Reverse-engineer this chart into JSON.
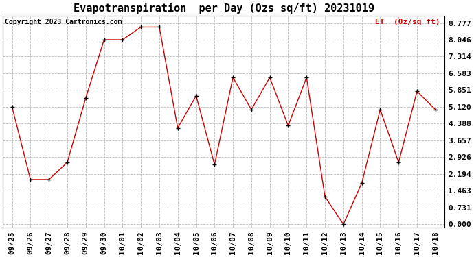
{
  "title": "Evapotranspiration  per Day (Ozs sq/ft) 20231019",
  "copyright_text": "Copyright 2023 Cartronics.com",
  "legend_label": "ET  (0z/sq ft)",
  "x_labels": [
    "09/25",
    "09/26",
    "09/27",
    "09/28",
    "09/29",
    "09/30",
    "10/01",
    "10/02",
    "10/03",
    "10/04",
    "10/05",
    "10/06",
    "10/07",
    "10/08",
    "10/09",
    "10/10",
    "10/11",
    "10/12",
    "10/13",
    "10/14",
    "10/15",
    "10/16",
    "10/17",
    "10/18"
  ],
  "y_values": [
    5.12,
    1.95,
    1.95,
    2.7,
    5.5,
    8.046,
    8.046,
    8.6,
    8.6,
    4.2,
    5.6,
    2.6,
    6.4,
    5.0,
    6.4,
    4.3,
    6.4,
    1.2,
    0.0,
    1.8,
    5.0,
    2.7,
    5.8,
    5.0
  ],
  "line_color": "#cc0000",
  "marker": "+",
  "marker_color": "#000000",
  "background_color": "#ffffff",
  "grid_color": "#bbbbbb",
  "title_fontsize": 11,
  "copyright_fontsize": 7,
  "tick_fontsize": 8,
  "legend_fontsize": 8,
  "ylim": [
    -0.15,
    9.1
  ],
  "yticks": [
    0.0,
    0.731,
    1.463,
    2.194,
    2.926,
    3.657,
    4.388,
    5.12,
    5.851,
    6.583,
    7.314,
    8.046,
    8.777
  ]
}
